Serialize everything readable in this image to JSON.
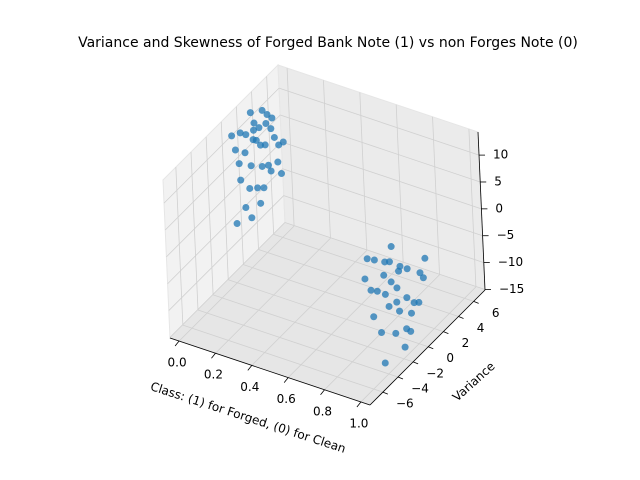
{
  "chart_data": {
    "type": "scatter3d",
    "title": "Variance and Skewness of Forged Bank Note (1) vs non Forges Note (0)",
    "xlabel": "Class: (1) for Forged, (0) for Clean",
    "ylabel": "Variance",
    "color": "#1f77b4",
    "grid": true,
    "xlim": [
      -0.05,
      1.05
    ],
    "ylim": [
      -7.7,
      7.5
    ],
    "zlim": [
      -15.1,
      14.3
    ],
    "xticks": [
      {
        "value": 0,
        "label": "0.0"
      },
      {
        "value": 0.2,
        "label": "0.2"
      },
      {
        "value": 0.4,
        "label": "0.4"
      },
      {
        "value": 0.6,
        "label": "0.6"
      },
      {
        "value": 0.8,
        "label": "0.8"
      },
      {
        "value": 1,
        "label": "1.0"
      }
    ],
    "yticks": [
      {
        "value": -6,
        "label": "−6"
      },
      {
        "value": -4,
        "label": "−4"
      },
      {
        "value": -2,
        "label": "−2"
      },
      0,
      2,
      4,
      6
    ],
    "zticks": [
      {
        "value": -15,
        "label": "−15"
      },
      {
        "value": -10,
        "label": "−10"
      },
      {
        "value": -5,
        "label": "−5"
      },
      0,
      5,
      10
    ],
    "x": [
      0,
      0,
      0,
      0,
      0,
      0,
      0,
      0,
      0,
      0,
      0,
      0,
      0,
      0,
      0,
      0,
      0,
      0,
      0,
      0,
      0,
      0,
      0,
      0,
      0,
      0,
      0,
      0,
      0,
      0,
      0,
      0,
      0,
      0,
      0,
      0,
      1,
      1,
      1,
      1,
      1,
      1,
      1,
      1,
      1,
      1,
      1,
      1,
      1,
      1,
      1,
      1,
      1,
      1,
      1,
      1,
      1,
      1,
      1,
      1,
      1,
      1,
      1,
      1,
      1,
      1,
      1,
      1
    ],
    "y": [
      3.6,
      4.5,
      3.9,
      0.3,
      3.2,
      1.9,
      4.9,
      2.6,
      5.5,
      3.8,
      1.2,
      6.0,
      4.3,
      2.1,
      0.9,
      5.1,
      3.0,
      4.7,
      2.4,
      1.5,
      5.8,
      3.4,
      0.5,
      4.1,
      2.8,
      6.6,
      1.0,
      3.7,
      5.3,
      2.2,
      0.1,
      4.6,
      3.1,
      1.7,
      6.2,
      2.9,
      -3.2,
      -2.5,
      -4.1,
      -1.3,
      -5.2,
      -0.8,
      -3.6,
      -2.0,
      -6.1,
      -1.5,
      -4.7,
      -2.9,
      0.5,
      -3.9,
      -5.6,
      -1.1,
      -2.3,
      -4.4,
      1.2,
      -0.4,
      -3.3,
      -5.0,
      -1.8,
      -6.5,
      -2.6,
      0.9,
      -4.0,
      -3.0,
      -1.0,
      -5.8,
      -2.2,
      0.2
    ],
    "z": [
      8.7,
      8.2,
      -2.9,
      -4.5,
      6.9,
      9.8,
      -1.2,
      12.9,
      4.2,
      1.2,
      11.1,
      2.1,
      4.5,
      -0.5,
      5.8,
      6.4,
      10.4,
      9.6,
      3.3,
      -3.2,
      -0.8,
      -5.1,
      8.9,
      11.2,
      7.6,
      1.8,
      2.6,
      5.3,
      8.1,
      -6.1,
      12.1,
      0.3,
      -1.8,
      6.7,
      -3.5,
      9.2,
      0.9,
      -1.2,
      3.4,
      -4.7,
      7.8,
      -8.3,
      -3.1,
      2.1,
      9.3,
      -10.2,
      -6.4,
      -9.1,
      -2.6,
      5.6,
      -2.2,
      0.4,
      -5.8,
      -12.5,
      -0.9,
      -6.9,
      4.8,
      1.7,
      -13.2,
      6.1,
      -3.7,
      -4.1,
      -0.3,
      7.2,
      -11.4,
      3.0,
      1.5,
      -7.7
    ]
  }
}
